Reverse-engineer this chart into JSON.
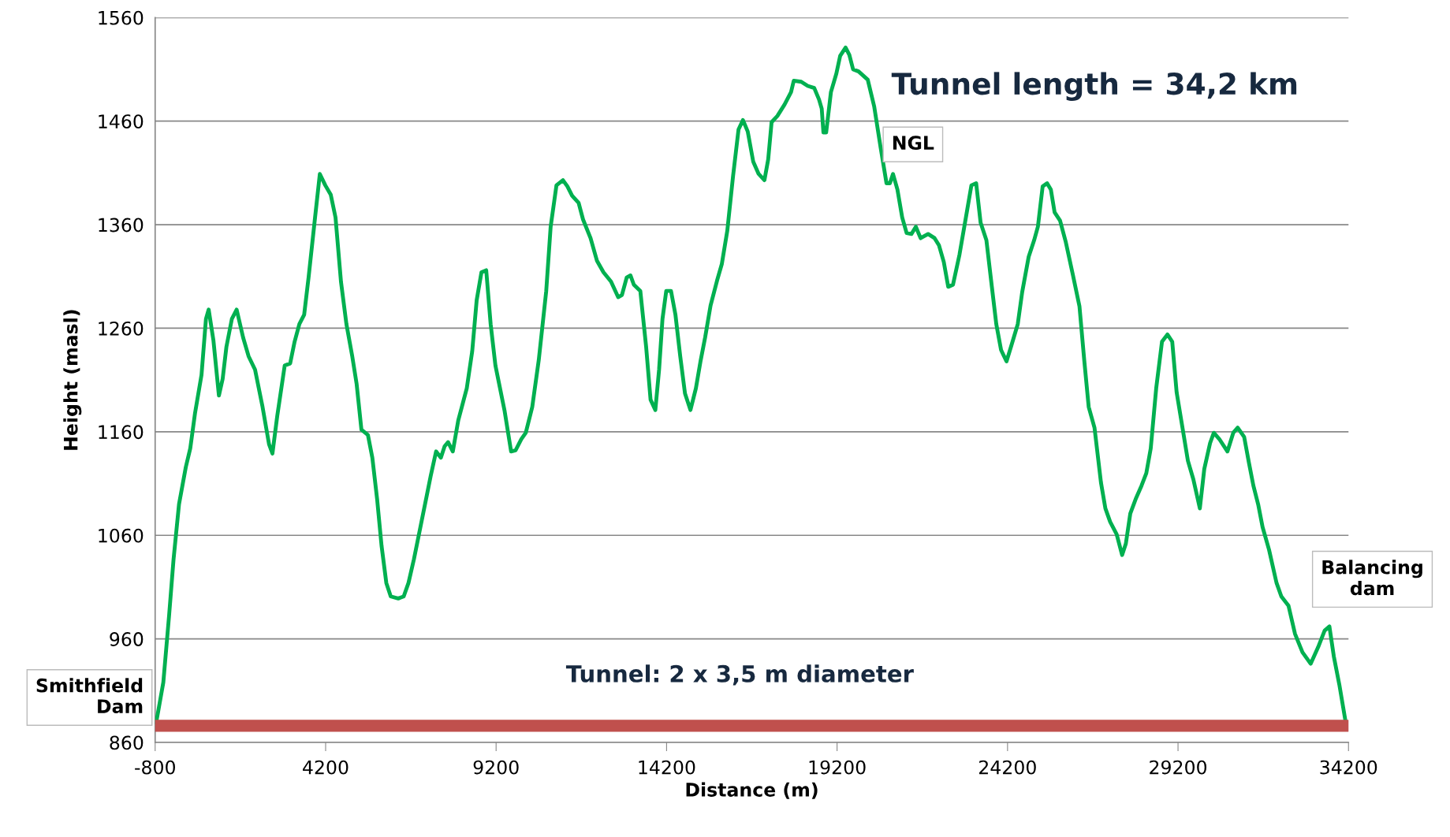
{
  "chart_data": {
    "type": "line",
    "xlabel": "Distance (m)",
    "ylabel": "Height (masl)",
    "xlim": [
      -800,
      34200
    ],
    "xticks": [
      -800,
      4200,
      9200,
      14200,
      19200,
      24200,
      29200,
      34200
    ],
    "ylim": [
      860,
      1560
    ],
    "yticks": [
      860,
      960,
      1060,
      1160,
      1260,
      1360,
      1460,
      1560
    ],
    "grid": "y",
    "legend": false,
    "marker": "none",
    "line_style": "solid",
    "series": [
      {
        "color": "#00b050",
        "x": [
          -770,
          -560,
          -390,
          -260,
          -100,
          100,
          230,
          370,
          560,
          690,
          770,
          910,
          1070,
          1180,
          1290,
          1450,
          1590,
          1780,
          1940,
          2130,
          2350,
          2540,
          2640,
          2780,
          3000,
          3160,
          3290,
          3430,
          3570,
          3700,
          3890,
          4030,
          4190,
          4350,
          4490,
          4650,
          4810,
          4980,
          5110,
          5250,
          5440,
          5570,
          5710,
          5840,
          5980,
          6110,
          6330,
          6490,
          6630,
          6790,
          6980,
          7170,
          7280,
          7440,
          7580,
          7690,
          7790,
          7930,
          8090,
          8340,
          8500,
          8630,
          8770,
          8910,
          9040,
          9180,
          9450,
          9640,
          9770,
          9940,
          10070,
          10260,
          10450,
          10670,
          10800,
          10970,
          11160,
          11290,
          11430,
          11620,
          11750,
          11970,
          12160,
          12350,
          12570,
          12780,
          12890,
          13030,
          13140,
          13240,
          13430,
          13600,
          13730,
          13870,
          13980,
          14080,
          14190,
          14330,
          14460,
          14600,
          14740,
          14900,
          15060,
          15200,
          15330,
          15490,
          15680,
          15820,
          15980,
          16150,
          16310,
          16440,
          16580,
          16740,
          16900,
          17070,
          17180,
          17280,
          17450,
          17660,
          17850,
          17930,
          18150,
          18340,
          18530,
          18670,
          18750,
          18800,
          18880,
          19020,
          19180,
          19290,
          19450,
          19560,
          19670,
          19830,
          20100,
          20290,
          20480,
          20650,
          20750,
          20840,
          20970,
          21110,
          21240,
          21380,
          21510,
          21650,
          21870,
          22060,
          22190,
          22330,
          22460,
          22600,
          22790,
          23010,
          23140,
          23280,
          23410,
          23580,
          23740,
          23870,
          24010,
          24170,
          24310,
          24500,
          24630,
          24820,
          24980,
          25090,
          25230,
          25360,
          25470,
          25580,
          25740,
          25910,
          26120,
          26310,
          26450,
          26580,
          26750,
          26940,
          27070,
          27210,
          27400,
          27560,
          27670,
          27800,
          27970,
          28130,
          28270,
          28400,
          28560,
          28730,
          28890,
          29030,
          29160,
          29320,
          29490,
          29650,
          29840,
          29970,
          30140,
          30250,
          30410,
          30650,
          30820,
          30950,
          31140,
          31280,
          31410,
          31550,
          31680,
          31870,
          32090,
          32230,
          32440,
          32630,
          32850,
          33090,
          33310,
          33500,
          33640,
          33770,
          33930,
          34120
        ],
        "values": [
          879,
          918,
          983,
          1037,
          1090,
          1126,
          1144,
          1178,
          1215,
          1269,
          1278,
          1248,
          1195,
          1211,
          1242,
          1269,
          1278,
          1251,
          1233,
          1220,
          1184,
          1148,
          1139,
          1175,
          1224,
          1226,
          1247,
          1264,
          1273,
          1309,
          1367,
          1409,
          1398,
          1389,
          1367,
          1305,
          1264,
          1233,
          1206,
          1162,
          1157,
          1135,
          1095,
          1050,
          1014,
          1001,
          999,
          1001,
          1014,
          1037,
          1068,
          1099,
          1117,
          1141,
          1135,
          1146,
          1150,
          1141,
          1171,
          1202,
          1238,
          1287,
          1314,
          1316,
          1264,
          1224,
          1180,
          1141,
          1142,
          1153,
          1159,
          1184,
          1229,
          1296,
          1358,
          1398,
          1403,
          1397,
          1388,
          1381,
          1365,
          1347,
          1325,
          1314,
          1305,
          1290,
          1292,
          1309,
          1311,
          1302,
          1296,
          1242,
          1191,
          1181,
          1220,
          1269,
          1296,
          1296,
          1273,
          1233,
          1197,
          1181,
          1202,
          1229,
          1251,
          1282,
          1306,
          1322,
          1354,
          1407,
          1452,
          1461,
          1450,
          1421,
          1409,
          1403,
          1423,
          1459,
          1465,
          1476,
          1488,
          1499,
          1498,
          1494,
          1492,
          1481,
          1472,
          1449,
          1449,
          1488,
          1506,
          1523,
          1531,
          1524,
          1510,
          1508,
          1500,
          1474,
          1434,
          1400,
          1400,
          1409,
          1394,
          1367,
          1352,
          1351,
          1358,
          1347,
          1351,
          1347,
          1340,
          1324,
          1300,
          1302,
          1331,
          1373,
          1398,
          1400,
          1362,
          1345,
          1300,
          1264,
          1239,
          1228,
          1243,
          1264,
          1295,
          1329,
          1345,
          1358,
          1397,
          1400,
          1394,
          1372,
          1364,
          1343,
          1311,
          1281,
          1229,
          1184,
          1164,
          1111,
          1086,
          1073,
          1061,
          1041,
          1052,
          1081,
          1096,
          1108,
          1120,
          1144,
          1202,
          1247,
          1254,
          1247,
          1198,
          1166,
          1132,
          1114,
          1086,
          1124,
          1149,
          1159,
          1153,
          1141,
          1159,
          1164,
          1155,
          1130,
          1108,
          1090,
          1068,
          1046,
          1014,
          1001,
          992,
          965,
          947,
          936,
          952,
          968,
          972,
          943,
          916,
          879
        ]
      },
      {
        "color": "#c0504d",
        "x": [
          -770,
          34170
        ],
        "values": [
          876,
          876
        ]
      }
    ],
    "annotations": [
      "Tunnel length = 34,2 km",
      "NGL",
      "Smithfield Dam",
      "Balancing dam",
      "Tunnel: 2 x 3,5 m diameter"
    ]
  }
}
